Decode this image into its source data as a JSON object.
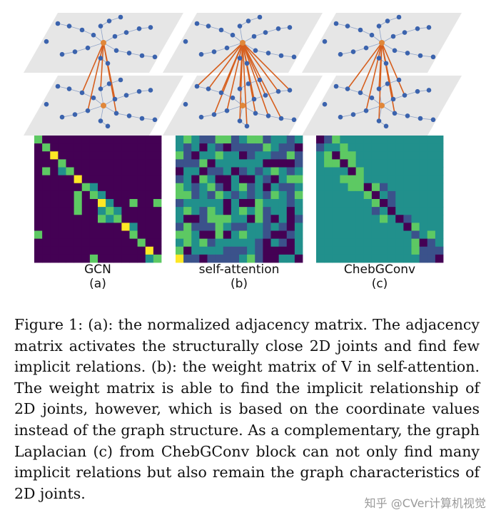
{
  "panels": [
    {
      "name": "GCN",
      "sublabel": "(a)",
      "edge_count": 5
    },
    {
      "name": "self-attention",
      "sublabel": "(b)",
      "edge_count": 15
    },
    {
      "name": "ChebGConv",
      "sublabel": "(c)",
      "edge_count": 8
    }
  ],
  "matrix_size": 16,
  "colors": {
    "plane": "#e6e6e6",
    "joint": "#3b63ad",
    "center_joint": "#e0873a",
    "edge": "#d65f1e",
    "viridis": [
      "#440154",
      "#3b528b",
      "#21908c",
      "#5dc963",
      "#fde725"
    ]
  },
  "caption": "Figure 1: (a): the normalized adjacency matrix. The adjacency matrix activates the structurally close 2D joints and find few implicit relations. (b): the weight matrix of V in self-attention. The weight matrix is able to find the implicit relationship of 2D joints, however, which is based on the coordinate values instead of the graph structure. As a complementary, the graph Laplacian (c) from ChebGConv block can not only find many implicit relations but also remain the graph characteristics of 2D joints.",
  "watermark": "知乎 @CVer计算机视觉"
}
